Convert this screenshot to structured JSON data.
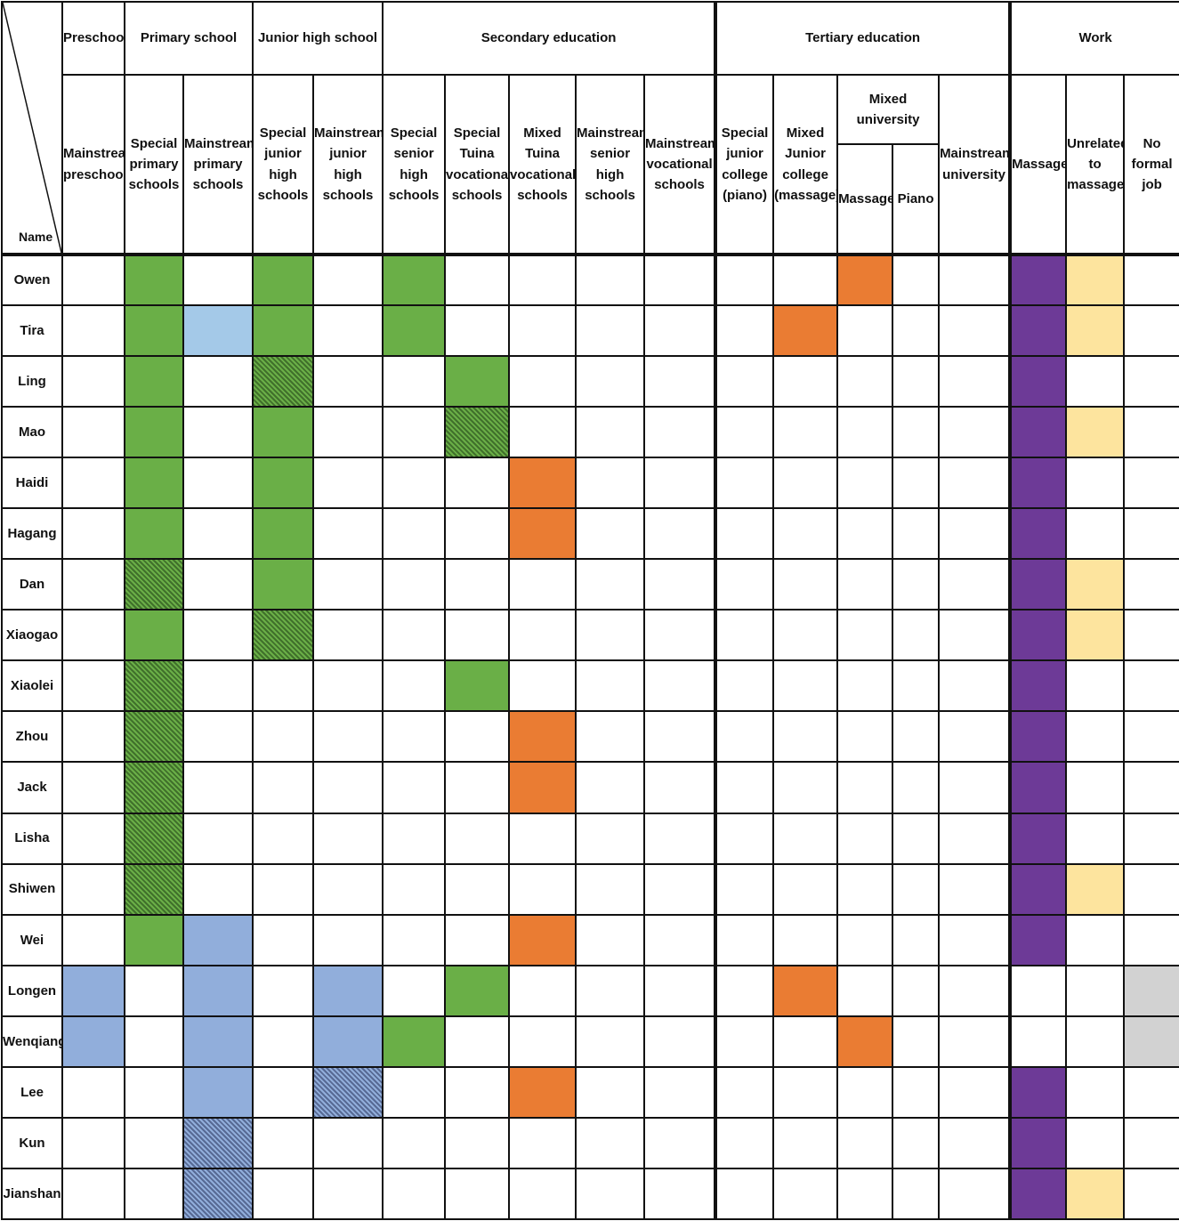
{
  "corner_label": "Name",
  "groups": [
    "Preschool",
    "Primary school",
    "Junior high school",
    "Secondary education",
    "Tertiary education",
    "Work"
  ],
  "subgroup_mixed_university": "Mixed university",
  "columns": [
    "Mainstream preschool",
    "Special primary schools",
    "Mainstream primary schools",
    "Special junior high schools",
    "Mainstream junior high schools",
    "Special senior high schools",
    "Special Tuina vocational schools",
    "Mixed Tuina vocational schools",
    "Mainstream senior high schools",
    "Mainstream vocational schools",
    "Special junior college (piano)",
    "Mixed Junior college (massage)",
    "Massage",
    "Piano",
    "Mainstream university",
    "Massage",
    "Unrelated to massage",
    "No formal job"
  ],
  "legend_colors": {
    "green": "#6aaf47",
    "green-hatch": "#6aaf47",
    "blue": "#91aedb",
    "blue-light": "#a4c9e8",
    "blue-hatch": "#91aedb",
    "orange": "#ea7c33",
    "purple": "#6d3a97",
    "yellow": "#fde49e",
    "grey": "#d2d2d2"
  },
  "rows": [
    {
      "name": "Owen",
      "fills": {
        "1": "green",
        "3": "green",
        "5": "green",
        "12": "orange",
        "15": "purple",
        "16": "yellow"
      }
    },
    {
      "name": "Tira",
      "fills": {
        "1": "green",
        "2": "blue-light",
        "3": "green",
        "5": "green",
        "11": "orange",
        "15": "purple",
        "16": "yellow"
      }
    },
    {
      "name": "Ling",
      "fills": {
        "1": "green",
        "3": "green-hatch",
        "6": "green",
        "15": "purple"
      }
    },
    {
      "name": "Mao",
      "fills": {
        "1": "green",
        "3": "green",
        "6": "green-hatch",
        "15": "purple",
        "16": "yellow"
      }
    },
    {
      "name": "Haidi",
      "fills": {
        "1": "green",
        "3": "green",
        "7": "orange",
        "15": "purple"
      }
    },
    {
      "name": "Hagang",
      "fills": {
        "1": "green",
        "3": "green",
        "7": "orange",
        "15": "purple"
      }
    },
    {
      "name": "Dan",
      "fills": {
        "1": "green-hatch",
        "3": "green",
        "15": "purple",
        "16": "yellow"
      }
    },
    {
      "name": "Xiaogao",
      "fills": {
        "1": "green",
        "3": "green-hatch",
        "15": "purple",
        "16": "yellow"
      }
    },
    {
      "name": "Xiaolei",
      "fills": {
        "1": "green-hatch",
        "6": "green",
        "15": "purple"
      }
    },
    {
      "name": "Zhou",
      "fills": {
        "1": "green-hatch",
        "7": "orange",
        "15": "purple"
      }
    },
    {
      "name": "Jack",
      "fills": {
        "1": "green-hatch",
        "7": "orange",
        "15": "purple"
      }
    },
    {
      "name": "Lisha",
      "fills": {
        "1": "green-hatch",
        "15": "purple"
      }
    },
    {
      "name": "Shiwen",
      "fills": {
        "1": "green-hatch",
        "15": "purple",
        "16": "yellow"
      }
    },
    {
      "name": "Wei",
      "fills": {
        "1": "green",
        "2": "blue",
        "7": "orange",
        "15": "purple"
      }
    },
    {
      "name": "Longen",
      "fills": {
        "0": "blue",
        "2": "blue",
        "4": "blue",
        "6": "green",
        "11": "orange",
        "17": "grey"
      }
    },
    {
      "name": "Wenqiang",
      "fills": {
        "0": "blue",
        "2": "blue",
        "4": "blue",
        "5": "green",
        "12": "orange",
        "17": "grey"
      }
    },
    {
      "name": "Lee",
      "fills": {
        "2": "blue",
        "4": "blue-hatch",
        "7": "orange",
        "15": "purple"
      }
    },
    {
      "name": "Kun",
      "fills": {
        "2": "blue-hatch",
        "15": "purple"
      }
    },
    {
      "name": "Jianshan",
      "fills": {
        "2": "blue-hatch",
        "15": "purple",
        "16": "yellow"
      }
    }
  ]
}
